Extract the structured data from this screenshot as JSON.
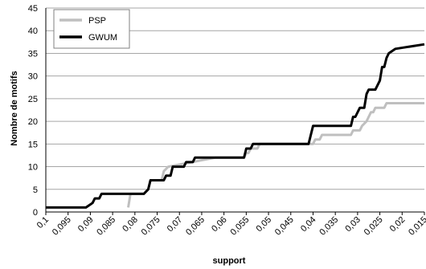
{
  "chart_data": {
    "type": "line",
    "xlabel": "support",
    "ylabel": "Nombre de motifs",
    "xlim": [
      0.1,
      0.015
    ],
    "ylim": [
      0,
      45
    ],
    "xticks": [
      "0,1",
      "0,095",
      "0,09",
      "0,085",
      "0,08",
      "0,075",
      "0,07",
      "0,065",
      "0,06",
      "0,055",
      "0,05",
      "0,045",
      "0,04",
      "0,035",
      "0,03",
      "0,025",
      "0,02",
      "0,015"
    ],
    "yticks": [
      "0",
      "5",
      "10",
      "15",
      "20",
      "25",
      "30",
      "35",
      "40",
      "45"
    ],
    "grid": "horizontal",
    "legend_position": "top-left",
    "series": [
      {
        "name": "PSP",
        "color": "#bfbfbf",
        "points": [
          [
            0.0815,
            1
          ],
          [
            0.081,
            4
          ],
          [
            0.078,
            4
          ],
          [
            0.077,
            5
          ],
          [
            0.0765,
            7
          ],
          [
            0.074,
            7
          ],
          [
            0.0735,
            9
          ],
          [
            0.0725,
            10
          ],
          [
            0.062,
            12
          ],
          [
            0.0555,
            12
          ],
          [
            0.055,
            13
          ],
          [
            0.0545,
            13
          ],
          [
            0.054,
            14
          ],
          [
            0.0525,
            14
          ],
          [
            0.052,
            15
          ],
          [
            0.04,
            15
          ],
          [
            0.0395,
            16
          ],
          [
            0.0385,
            16
          ],
          [
            0.038,
            17
          ],
          [
            0.0315,
            17
          ],
          [
            0.031,
            18
          ],
          [
            0.0295,
            18
          ],
          [
            0.029,
            19
          ],
          [
            0.028,
            20
          ],
          [
            0.0275,
            21
          ],
          [
            0.027,
            22
          ],
          [
            0.0265,
            22
          ],
          [
            0.026,
            23
          ],
          [
            0.024,
            23
          ],
          [
            0.0235,
            24
          ],
          [
            0.015,
            24
          ]
        ]
      },
      {
        "name": "GWUM",
        "color": "#000000",
        "points": [
          [
            0.1,
            1
          ],
          [
            0.091,
            1
          ],
          [
            0.0895,
            2
          ],
          [
            0.089,
            3
          ],
          [
            0.088,
            3
          ],
          [
            0.0875,
            4
          ],
          [
            0.078,
            4
          ],
          [
            0.077,
            5
          ],
          [
            0.0765,
            7
          ],
          [
            0.0735,
            7
          ],
          [
            0.073,
            8
          ],
          [
            0.072,
            8
          ],
          [
            0.0715,
            10
          ],
          [
            0.069,
            10
          ],
          [
            0.0685,
            11
          ],
          [
            0.067,
            11
          ],
          [
            0.0665,
            12
          ],
          [
            0.0555,
            12
          ],
          [
            0.055,
            14
          ],
          [
            0.054,
            14
          ],
          [
            0.0535,
            15
          ],
          [
            0.041,
            15
          ],
          [
            0.0405,
            17
          ],
          [
            0.04,
            19
          ],
          [
            0.0315,
            19
          ],
          [
            0.031,
            21
          ],
          [
            0.0305,
            21
          ],
          [
            0.0295,
            23
          ],
          [
            0.0285,
            23
          ],
          [
            0.028,
            26
          ],
          [
            0.0275,
            27
          ],
          [
            0.026,
            27
          ],
          [
            0.025,
            29
          ],
          [
            0.0245,
            32
          ],
          [
            0.024,
            32
          ],
          [
            0.0235,
            34
          ],
          [
            0.023,
            35
          ],
          [
            0.0215,
            36
          ],
          [
            0.015,
            37
          ]
        ]
      }
    ]
  }
}
